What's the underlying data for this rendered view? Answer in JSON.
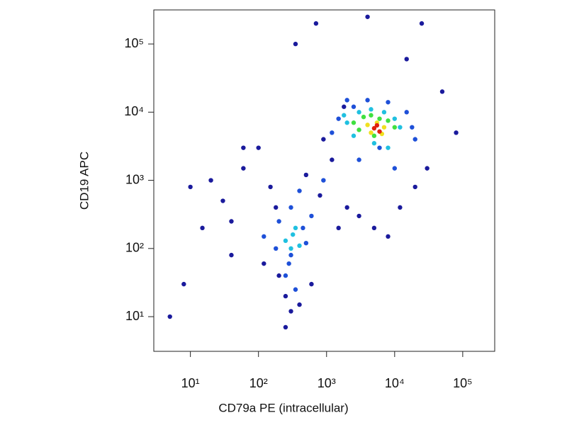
{
  "chart_data": {
    "type": "scatter",
    "x_label": "CD79a PE (intracellular)",
    "y_label": "CD19 APC",
    "xscale": "log",
    "yscale": "log",
    "xlim": [
      2.9,
      295000
    ],
    "ylim": [
      3.1,
      316000
    ],
    "xticks": [
      {
        "value": 10,
        "label": "10¹"
      },
      {
        "value": 100,
        "label": "10²"
      },
      {
        "value": 1000,
        "label": "10³"
      },
      {
        "value": 10000,
        "label": "10⁴"
      },
      {
        "value": 100000,
        "label": "10⁵"
      }
    ],
    "yticks": [
      {
        "value": 10,
        "label": "10¹"
      },
      {
        "value": 100,
        "label": "10²"
      },
      {
        "value": 1000,
        "label": "10³"
      },
      {
        "value": 10000,
        "label": "10⁴"
      },
      {
        "value": 100000,
        "label": "10⁵"
      }
    ],
    "series": [
      {
        "color": "#1a1a9c",
        "x": [
          5,
          8,
          15,
          30,
          60,
          100,
          150,
          200,
          250,
          400,
          600,
          800,
          1200,
          1500,
          2000,
          3000,
          5000,
          8000,
          12000,
          20000,
          30000,
          15000,
          700,
          350,
          120,
          60,
          40,
          20,
          10,
          50000,
          80000,
          250,
          300,
          180,
          500,
          900,
          1800,
          25000,
          4000,
          40
        ],
        "values": [
          10,
          30,
          200,
          500,
          1500,
          3000,
          800,
          40,
          20,
          15,
          30,
          600,
          2000,
          200,
          400,
          300,
          200,
          150,
          400,
          800,
          1500,
          60000,
          200000,
          100000,
          60,
          3000,
          80,
          1000,
          800,
          20000,
          5000,
          7,
          12,
          400,
          1200,
          4000,
          12000,
          200000,
          250000,
          250
        ]
      },
      {
        "color": "#1e50d8",
        "x": [
          120,
          200,
          300,
          450,
          600,
          250,
          350,
          180,
          500,
          300,
          1500,
          2500,
          4000,
          8000,
          15000,
          20000,
          1200,
          3000,
          10000,
          6000,
          18000,
          2000,
          900,
          400,
          280
        ],
        "values": [
          150,
          250,
          80,
          200,
          300,
          40,
          25,
          100,
          120,
          400,
          8000,
          12000,
          15000,
          14000,
          10000,
          4000,
          5000,
          2000,
          1500,
          3000,
          6000,
          15000,
          1000,
          700,
          60
        ]
      },
      {
        "color": "#20c0e0",
        "x": [
          250,
          320,
          400,
          300,
          350,
          2000,
          3000,
          4500,
          7000,
          10000,
          2500,
          12000,
          1800,
          5000,
          8000
        ],
        "values": [
          130,
          160,
          110,
          100,
          200,
          7000,
          10000,
          11000,
          10000,
          8000,
          4500,
          6000,
          9000,
          3500,
          3000
        ]
      },
      {
        "color": "#40e040",
        "x": [
          2500,
          3500,
          4500,
          6000,
          8000,
          3000,
          10000,
          5000
        ],
        "values": [
          7000,
          8500,
          9000,
          8000,
          7500,
          5500,
          6000,
          4500
        ]
      },
      {
        "color": "#f0e020",
        "x": [
          4000,
          5500,
          7000,
          4500,
          6500
        ],
        "values": [
          6500,
          7000,
          6000,
          5000,
          4800
        ]
      },
      {
        "color": "#e02010",
        "x": [
          5000,
          6000,
          5500
        ],
        "values": [
          5800,
          5200,
          6400
        ]
      }
    ]
  }
}
